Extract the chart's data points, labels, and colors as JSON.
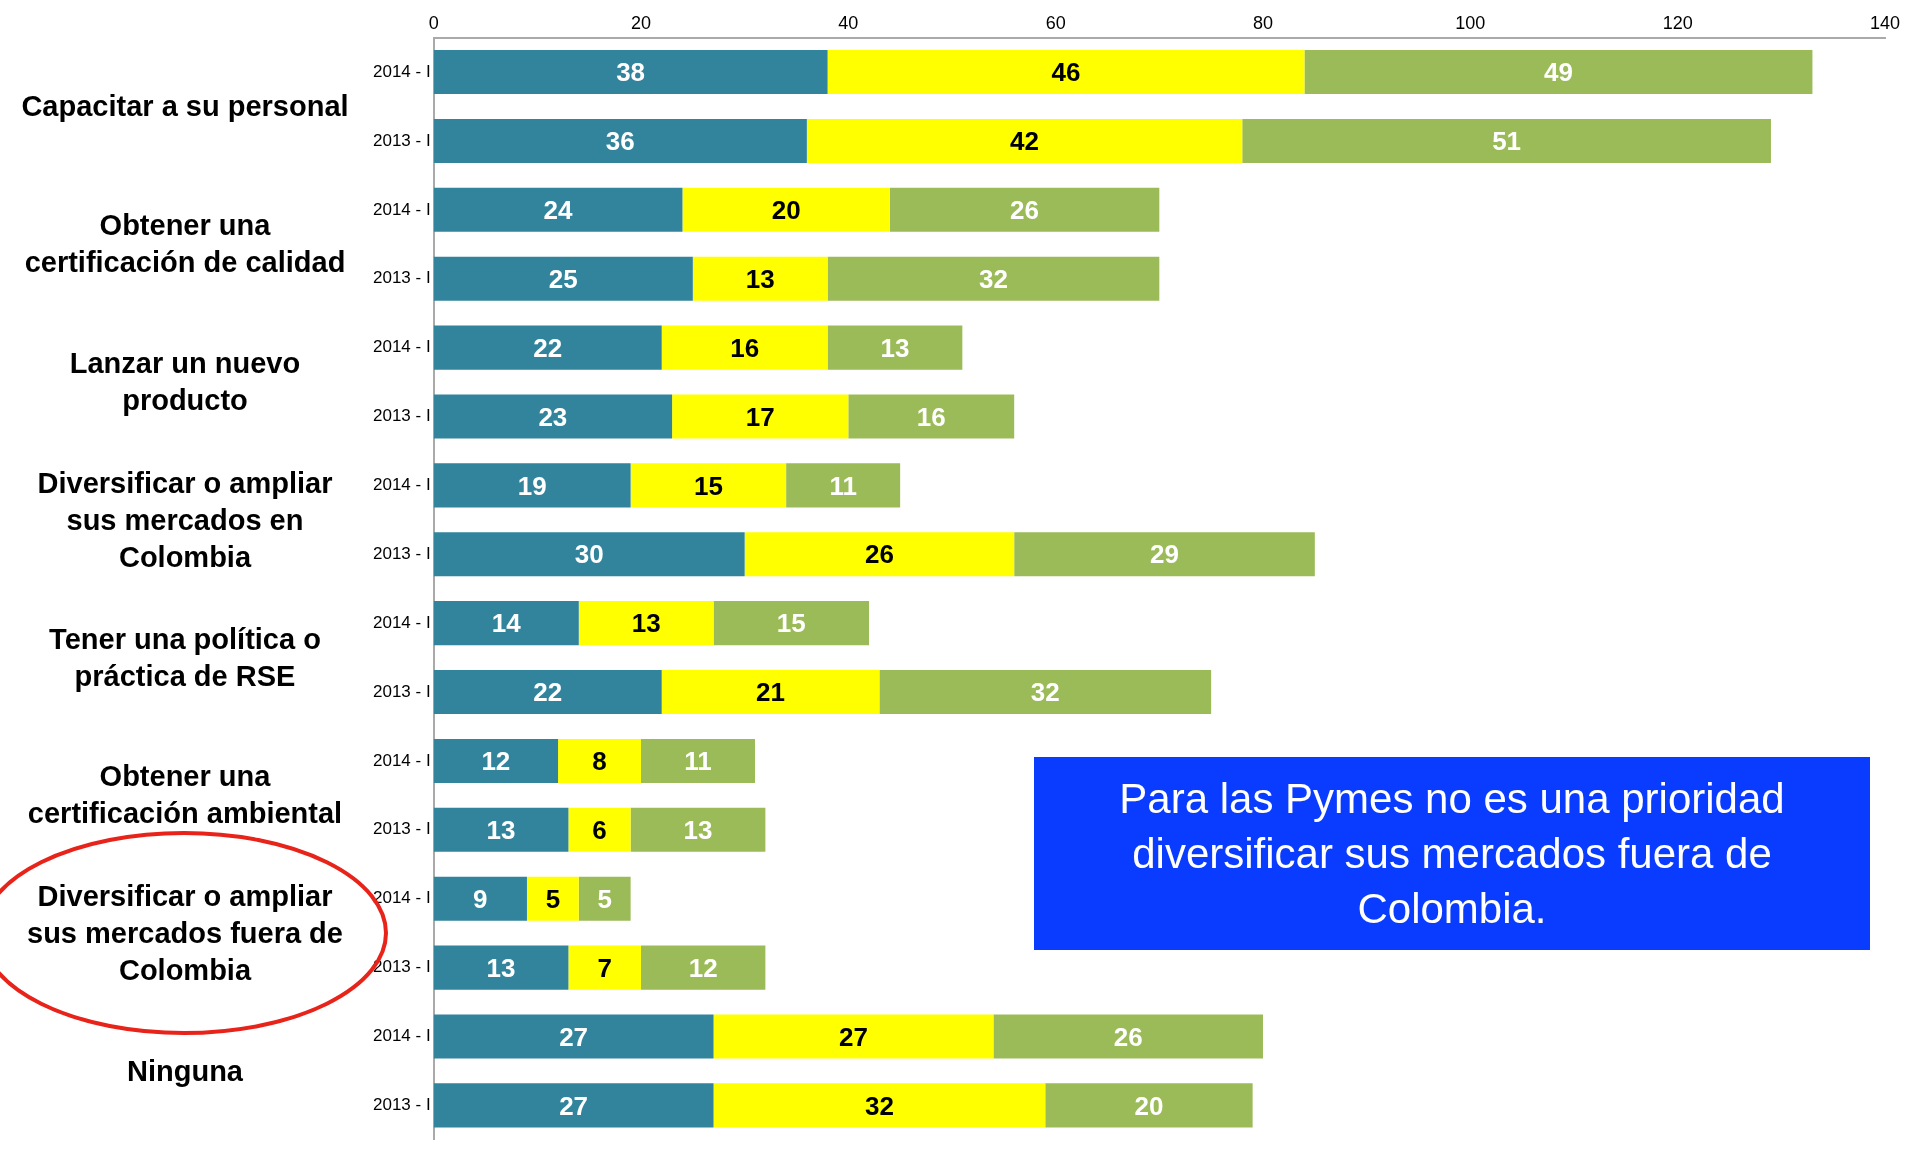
{
  "chart_data": {
    "type": "bar",
    "orientation": "horizontal",
    "stacked": true,
    "data_labels": true,
    "grid": false,
    "legend": false,
    "categories": [
      "2014 - I",
      "2013 - I",
      "2014 - I",
      "2013 - I",
      "2014 - I",
      "2013 - I",
      "2014 - I",
      "2013 - I",
      "2014 - I",
      "2013 - I",
      "2014 - I",
      "2013 - I",
      "2014 - I",
      "2013 - I",
      "2014 - I",
      "2013 - I"
    ],
    "series": [
      {
        "color": "#31849b",
        "values": [
          38,
          36,
          24,
          25,
          22,
          23,
          19,
          30,
          14,
          22,
          12,
          13,
          9,
          13,
          27,
          27
        ]
      },
      {
        "color": "#ffff00",
        "values": [
          46,
          42,
          20,
          13,
          16,
          17,
          15,
          26,
          13,
          21,
          8,
          6,
          5,
          7,
          27,
          32
        ]
      },
      {
        "color": "#9bbb59",
        "values": [
          49,
          51,
          26,
          32,
          13,
          16,
          11,
          29,
          15,
          32,
          11,
          13,
          5,
          12,
          26,
          20
        ]
      }
    ],
    "xlim": [
      0,
      140
    ],
    "xticks": [
      0,
      20,
      40,
      60,
      80,
      100,
      120,
      140
    ],
    "annotations": [
      "Capacitar a su personal",
      "Obtener una certificación de calidad",
      "Lanzar un nuevo producto",
      "Diversificar o ampliar sus mercados en Colombia",
      "Tener una política o práctica de RSE",
      "Obtener una certificación ambiental",
      "Diversificar o ampliar sus mercados fuera de Colombia",
      "Ninguna",
      "Para las Pymes no es una prioridad diversificar sus mercados fuera de Colombia."
    ]
  }
}
